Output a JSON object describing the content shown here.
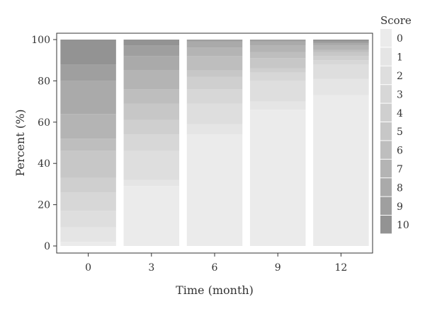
{
  "chart_data": {
    "type": "bar",
    "stacked": true,
    "percent": true,
    "xlabel": "Time (month)",
    "ylabel": "Percent (%)",
    "ylim": [
      0,
      100
    ],
    "yticks": [
      0,
      20,
      40,
      60,
      80,
      100
    ],
    "categories": [
      "0",
      "3",
      "6",
      "9",
      "12"
    ],
    "legend_title": "Score",
    "legend_position": "right",
    "grid": false,
    "series": [
      {
        "name": "0",
        "color": "#ebebeb",
        "values": [
          2,
          29,
          54,
          66,
          73
        ]
      },
      {
        "name": "1",
        "color": "#e5e5e5",
        "values": [
          7,
          3,
          5,
          4,
          8
        ]
      },
      {
        "name": "2",
        "color": "#dedede",
        "values": [
          8,
          14,
          10,
          10,
          7
        ]
      },
      {
        "name": "3",
        "color": "#d7d7d7",
        "values": [
          9,
          8,
          7,
          4,
          2
        ]
      },
      {
        "name": "4",
        "color": "#cfcfcf",
        "values": [
          7,
          7,
          6,
          2,
          2
        ]
      },
      {
        "name": "5",
        "color": "#c7c7c7",
        "values": [
          13,
          8,
          3,
          5,
          2
        ]
      },
      {
        "name": "6",
        "color": "#bebebe",
        "values": [
          6,
          7,
          7,
          3,
          1
        ]
      },
      {
        "name": "7",
        "color": "#b4b4b4",
        "values": [
          12,
          9,
          4,
          3,
          2
        ]
      },
      {
        "name": "8",
        "color": "#aaaaaa",
        "values": [
          16,
          7,
          3,
          2,
          1
        ]
      },
      {
        "name": "9",
        "color": "#9f9f9f",
        "values": [
          8,
          5,
          1,
          1,
          1
        ]
      },
      {
        "name": "10",
        "color": "#939393",
        "values": [
          12,
          3,
          0,
          0,
          1
        ]
      }
    ]
  }
}
